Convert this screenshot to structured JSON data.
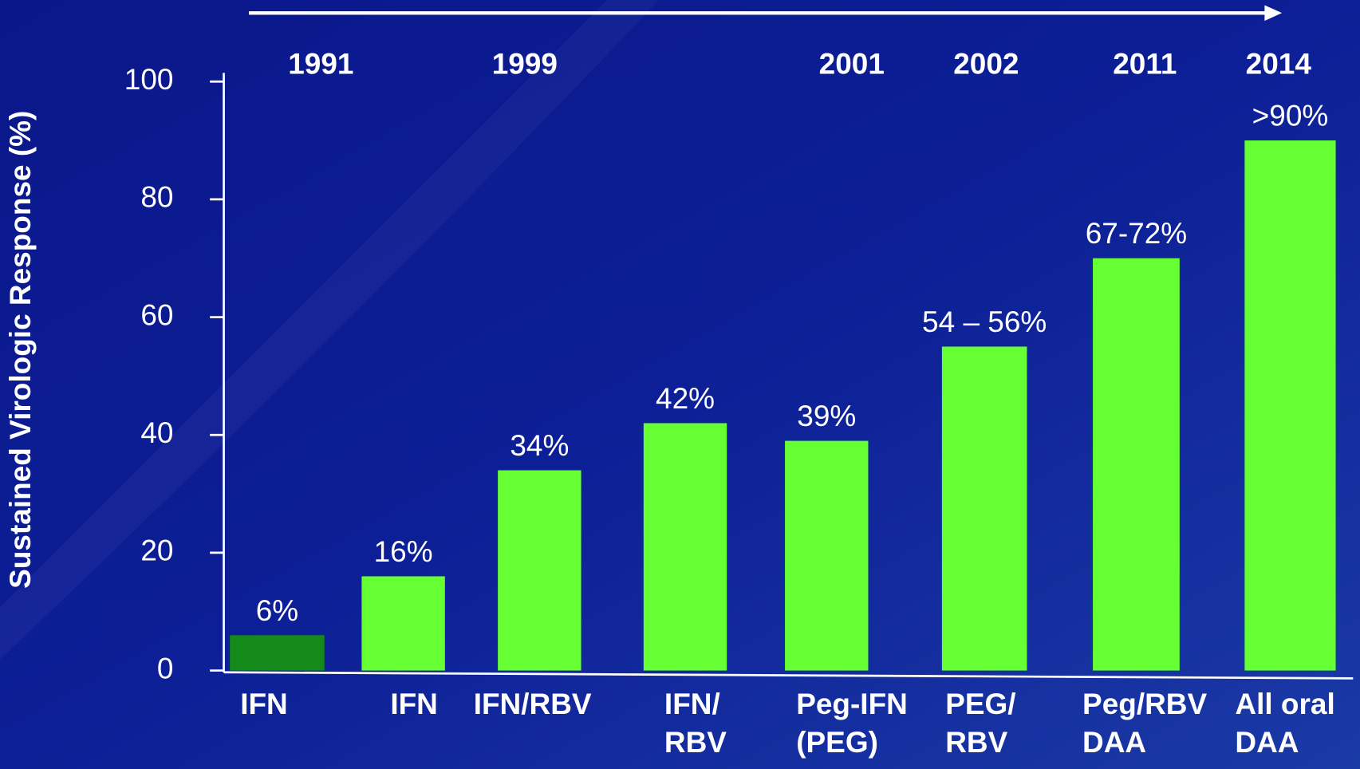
{
  "chart_data": {
    "type": "bar",
    "y_axis_label": "Sustained Virologic Response (%)",
    "categories": [
      "IFN",
      "IFN",
      "IFN/RBV",
      "IFN/\nRBV",
      "Peg-IFN\n(PEG)",
      "PEG/\nRBV",
      "Peg/RBV\nDAA",
      "All oral\nDAA"
    ],
    "values": [
      6,
      16,
      34,
      42,
      39,
      55,
      70,
      90
    ],
    "value_labels": [
      "6%",
      "16%",
      "34%",
      "42%",
      "39%",
      "54 – 56%",
      "67-72%",
      ">90%"
    ],
    "colors": [
      "#138a1a",
      "#66ff33",
      "#66ff33",
      "#66ff33",
      "#66ff33",
      "#66ff33",
      "#66ff33",
      "#66ff33"
    ],
    "annotations": [
      "1991",
      "1999",
      "2001",
      "2002",
      "2011",
      "2014"
    ],
    "ylim": [
      0,
      100
    ],
    "yticks": [
      0,
      20,
      40,
      60,
      80,
      100
    ]
  }
}
